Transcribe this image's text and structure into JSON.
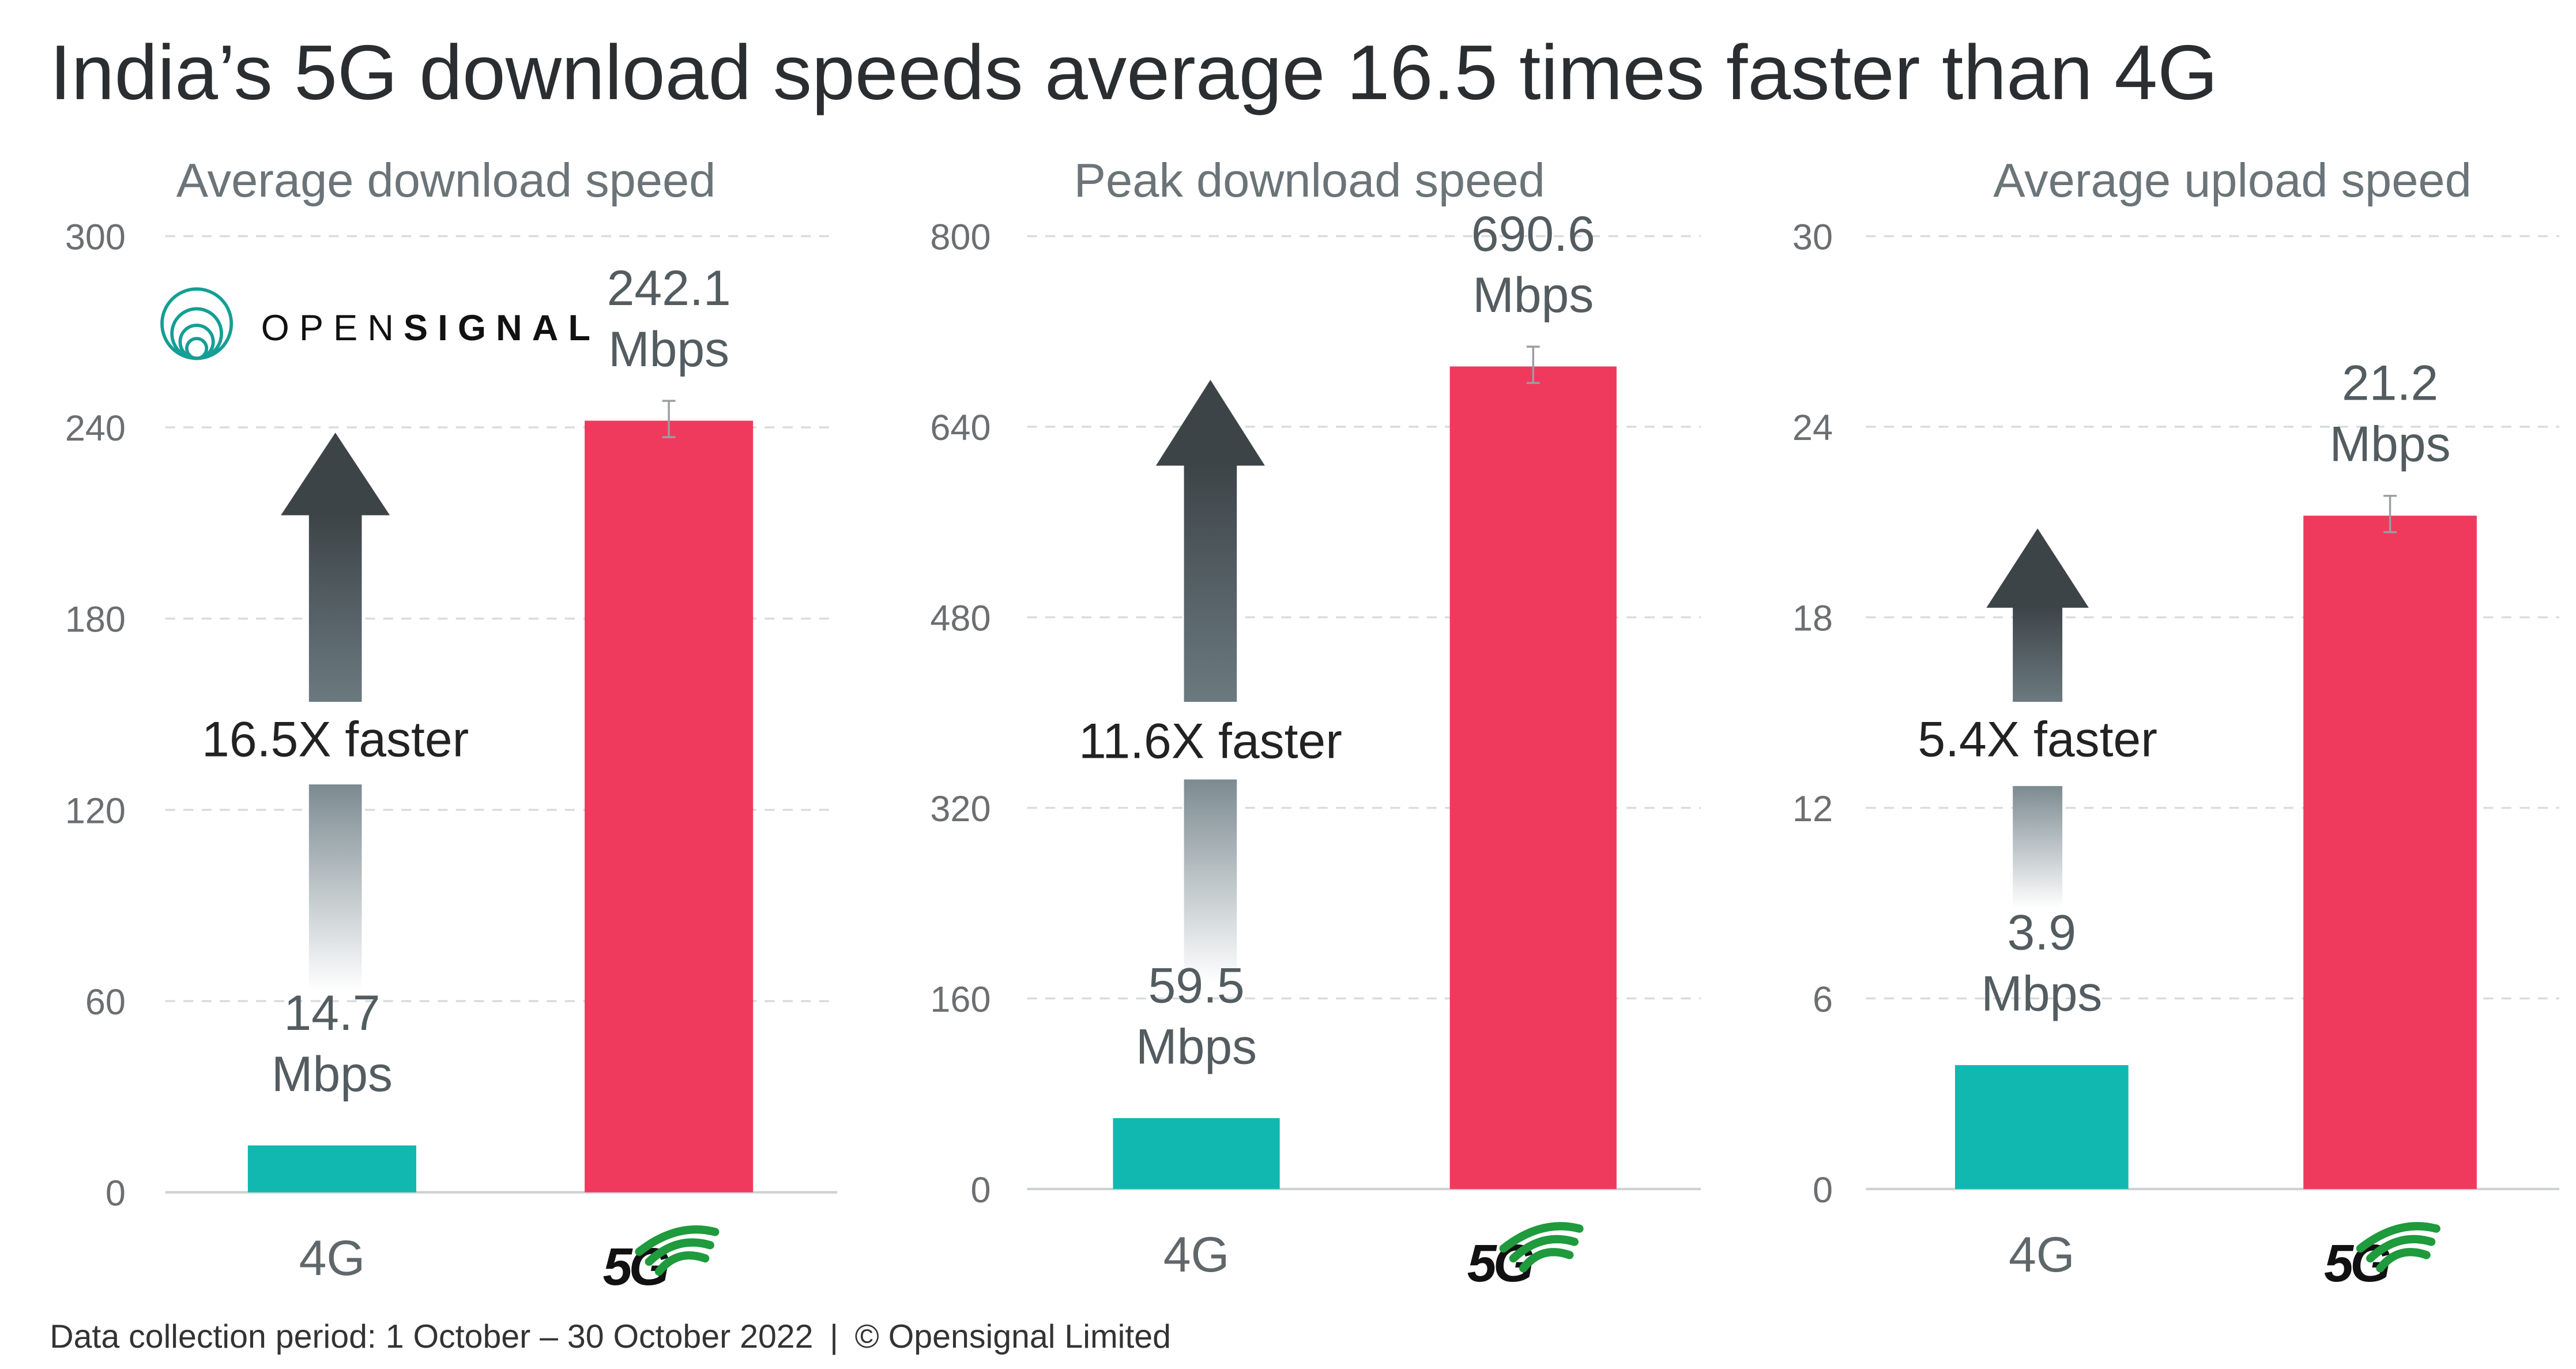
{
  "title": "India’s 5G download speeds average 16.5 times faster than 4G",
  "footer": {
    "period": "Data collection period: 1 October – 30 October 2022",
    "separator": "|",
    "copyright": "© Opensignal Limited"
  },
  "logo": {
    "text_light": "OPEN",
    "text_bold": "SIGNAL",
    "color": "#149e94"
  },
  "colors": {
    "4G": "#10b8b0",
    "5G": "#ef3a5d",
    "arrow_top": "#3d4448",
    "arrow_bottom": "#ffffff"
  },
  "chart_data": [
    {
      "type": "bar",
      "title": "Average download speed",
      "categories": [
        "4G",
        "5G"
      ],
      "values": [
        14.7,
        242.1
      ],
      "unit": "Mbps",
      "ylim": [
        0,
        300
      ],
      "yticks": [
        "0",
        "60",
        "120",
        "180",
        "240",
        "300"
      ],
      "grid": true,
      "annotation": "16.5X faster",
      "value_labels": [
        "14.7",
        "242.1"
      ]
    },
    {
      "type": "bar",
      "title": "Peak download speed",
      "categories": [
        "4G",
        "5G"
      ],
      "values": [
        59.5,
        690.6
      ],
      "unit": "Mbps",
      "ylim": [
        0,
        800
      ],
      "yticks": [
        "0",
        "160",
        "320",
        "480",
        "640",
        "800"
      ],
      "grid": true,
      "annotation": "11.6X faster",
      "value_labels": [
        "59.5",
        "690.6"
      ]
    },
    {
      "type": "bar",
      "title": "Average upload speed",
      "categories": [
        "4G",
        "5G"
      ],
      "values": [
        3.9,
        21.2
      ],
      "unit": "Mbps",
      "ylim": [
        0,
        30
      ],
      "yticks": [
        "0",
        "6",
        "12",
        "18",
        "24",
        "30"
      ],
      "grid": true,
      "annotation": "5.4X faster",
      "value_labels": [
        "3.9",
        "21.2"
      ]
    }
  ]
}
